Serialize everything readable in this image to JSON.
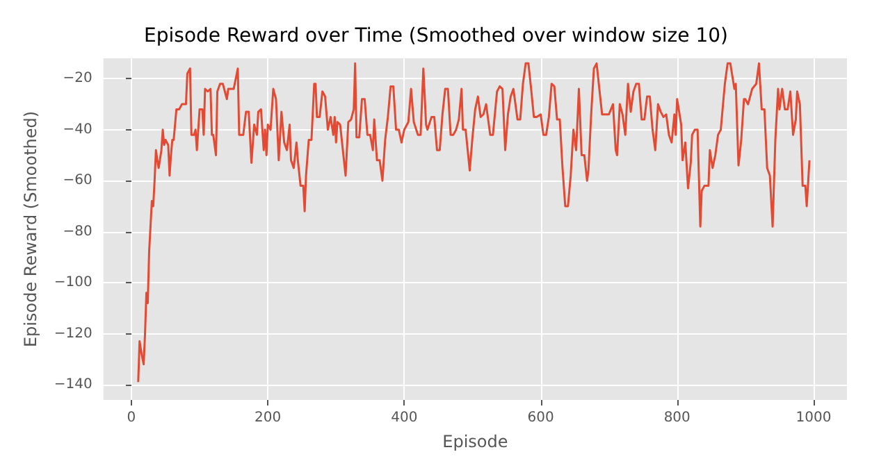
{
  "chart_data": {
    "type": "line",
    "title": "Episode Reward over Time (Smoothed over window size 10)",
    "xlabel": "Episode",
    "ylabel": "Episode Reward (Smoothed)",
    "x": [
      10,
      12,
      15,
      18,
      20,
      22,
      24,
      26,
      28,
      30,
      32,
      34,
      36,
      38,
      40,
      44,
      46,
      48,
      50,
      54,
      56,
      58,
      60,
      62,
      66,
      70,
      74,
      80,
      82,
      86,
      88,
      92,
      94,
      96,
      100,
      104,
      106,
      108,
      112,
      116,
      118,
      120,
      124,
      126,
      130,
      134,
      140,
      142,
      146,
      150,
      156,
      158,
      160,
      164,
      168,
      172,
      176,
      180,
      184,
      186,
      190,
      194,
      196,
      198,
      200,
      204,
      208,
      212,
      216,
      220,
      224,
      228,
      232,
      234,
      238,
      242,
      244,
      248,
      252,
      254,
      256,
      260,
      264,
      268,
      270,
      272,
      276,
      280,
      284,
      288,
      292,
      296,
      298,
      300,
      302,
      306,
      310,
      314,
      318,
      322,
      326,
      328,
      330,
      334,
      338,
      342,
      346,
      350,
      354,
      356,
      360,
      364,
      368,
      372,
      376,
      380,
      384,
      388,
      392,
      396,
      400,
      406,
      410,
      414,
      420,
      424,
      428,
      432,
      434,
      440,
      444,
      448,
      452,
      456,
      460,
      464,
      468,
      472,
      476,
      480,
      484,
      486,
      490,
      496,
      500,
      504,
      508,
      512,
      516,
      520,
      526,
      530,
      536,
      540,
      544,
      548,
      552,
      556,
      560,
      566,
      570,
      574,
      578,
      582,
      586,
      590,
      594,
      600,
      604,
      608,
      612,
      616,
      620,
      624,
      628,
      632,
      636,
      640,
      644,
      648,
      652,
      656,
      660,
      664,
      668,
      670,
      674,
      678,
      682,
      686,
      690,
      694,
      700,
      706,
      710,
      712,
      716,
      720,
      724,
      728,
      732,
      736,
      740,
      744,
      748,
      752,
      756,
      760,
      764,
      768,
      772,
      776,
      780,
      784,
      788,
      792,
      796,
      798,
      800,
      806,
      808,
      812,
      816,
      820,
      822,
      826,
      830,
      834,
      836,
      840,
      846,
      848,
      852,
      856,
      860,
      864,
      870,
      874,
      878,
      884,
      886,
      890,
      894,
      898,
      900,
      904,
      910,
      916,
      920,
      924,
      928,
      932,
      936,
      940,
      944,
      948,
      950,
      954,
      958,
      962,
      966,
      970,
      974,
      976,
      980,
      984,
      988,
      990,
      994
    ],
    "series": [
      {
        "color": "#e24a33",
        "values": [
          -139,
          -123,
          -128,
          -132,
          -120,
          -104,
          -108,
          -88,
          -78,
          -68,
          -70,
          -60,
          -48,
          -52,
          -55,
          -48,
          -40,
          -46,
          -44,
          -46,
          -58,
          -50,
          -44,
          -44,
          -32,
          -32,
          -30,
          -30,
          -18,
          -16,
          -42,
          -42,
          -40,
          -48,
          -32,
          -32,
          -42,
          -24,
          -25,
          -24,
          -42,
          -42,
          -50,
          -25,
          -22,
          -22,
          -28,
          -24,
          -24,
          -24,
          -16,
          -42,
          -42,
          -42,
          -33,
          -33,
          -53,
          -38,
          -42,
          -33,
          -32,
          -48,
          -40,
          -50,
          -38,
          -40,
          -24,
          -28,
          -52,
          -33,
          -45,
          -48,
          -38,
          -52,
          -55,
          -45,
          -52,
          -62,
          -62,
          -72,
          -58,
          -44,
          -44,
          -22,
          -22,
          -35,
          -35,
          -25,
          -27,
          -40,
          -35,
          -42,
          -35,
          -45,
          -37,
          -38,
          -48,
          -58,
          -37,
          -36,
          -32,
          -14,
          -43,
          -43,
          -28,
          -28,
          -42,
          -42,
          -48,
          -36,
          -52,
          -52,
          -60,
          -44,
          -35,
          -23,
          -23,
          -40,
          -40,
          -45,
          -40,
          -37,
          -24,
          -37,
          -42,
          -42,
          -16,
          -38,
          -40,
          -35,
          -35,
          -48,
          -48,
          -34,
          -24,
          -24,
          -42,
          -42,
          -40,
          -36,
          -24,
          -40,
          -40,
          -56,
          -43,
          -32,
          -27,
          -35,
          -34,
          -30,
          -42,
          -42,
          -25,
          -23,
          -24,
          -48,
          -34,
          -27,
          -24,
          -36,
          -36,
          -22,
          -14,
          -14,
          -24,
          -35,
          -35,
          -34,
          -42,
          -42,
          -35,
          -22,
          -23,
          -36,
          -36,
          -55,
          -70,
          -70,
          -58,
          -40,
          -48,
          -24,
          -50,
          -50,
          -60,
          -56,
          -34,
          -16,
          -14,
          -24,
          -34,
          -34,
          -34,
          -30,
          -48,
          -50,
          -30,
          -34,
          -42,
          -22,
          -33,
          -25,
          -22,
          -22,
          -36,
          -36,
          -27,
          -27,
          -40,
          -48,
          -30,
          -33,
          -35,
          -34,
          -42,
          -45,
          -34,
          -42,
          -28,
          -38,
          -52,
          -45,
          -63,
          -53,
          -42,
          -40,
          -40,
          -78,
          -64,
          -62,
          -62,
          -48,
          -55,
          -50,
          -42,
          -40,
          -22,
          -14,
          -14,
          -24,
          -22,
          -54,
          -44,
          -28,
          -28,
          -30,
          -24,
          -22,
          -14,
          -32,
          -32,
          -55,
          -58,
          -78,
          -44,
          -24,
          -32,
          -24,
          -32,
          -32,
          -25,
          -42,
          -36,
          -25,
          -30,
          -62,
          -62,
          -70,
          -52
        ]
      }
    ],
    "xlim": [
      -41,
      1049
    ],
    "ylim": [
      -146,
      -12
    ],
    "xticks": [
      0,
      200,
      400,
      600,
      800,
      1000
    ],
    "yticks": [
      -140,
      -120,
      -100,
      -80,
      -60,
      -40,
      -20
    ],
    "grid": true
  }
}
